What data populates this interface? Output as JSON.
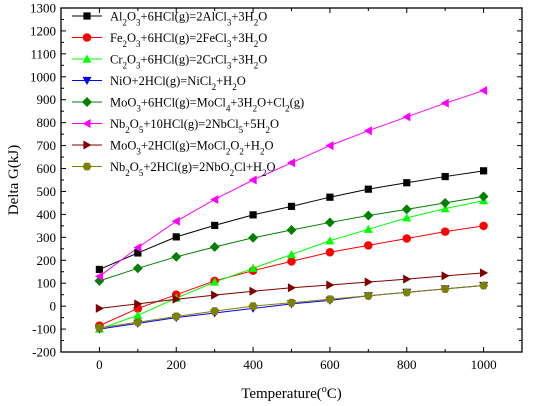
{
  "chart_data": {
    "type": "line",
    "title": "",
    "xlabel": "Temperature",
    "xlabel_sup": "o",
    "xlabel_unit": "C)",
    "xlabel_full": "Temperature(oC)",
    "ylabel": "Delta G(kJ)",
    "xlim": [
      -100,
      1100
    ],
    "ylim": [
      -200,
      1300
    ],
    "xticks": [
      0,
      200,
      400,
      600,
      800,
      1000
    ],
    "yticks": [
      -200,
      -100,
      0,
      100,
      200,
      300,
      400,
      500,
      600,
      700,
      800,
      900,
      1000,
      1100,
      1200,
      1300
    ],
    "grid": false,
    "legend_position": "top-left",
    "x": [
      0,
      100,
      200,
      300,
      400,
      500,
      600,
      700,
      800,
      900,
      1000
    ],
    "series": [
      {
        "name": "Al2O3+6HCl(g)=2AlCl3+3H2O",
        "label_parts": [
          [
            "Al",
            ""
          ],
          [
            "2",
            "sub"
          ],
          [
            "O",
            ""
          ],
          [
            "3",
            "sub"
          ],
          [
            "+6HCl(g)=2AlCl",
            ""
          ],
          [
            "3",
            "sub"
          ],
          [
            "+3H",
            ""
          ],
          [
            "2",
            "sub"
          ],
          [
            "O",
            ""
          ]
        ],
        "color": "#000000",
        "marker": "square",
        "values": [
          160,
          232,
          302,
          352,
          398,
          435,
          475,
          510,
          538,
          565,
          590
        ]
      },
      {
        "name": "Fe2O3+6HCl(g)=2FeCl3+3H2O",
        "label_parts": [
          [
            "Fe",
            ""
          ],
          [
            "2",
            "sub"
          ],
          [
            "O",
            ""
          ],
          [
            "3",
            "sub"
          ],
          [
            "+6HCl(g)=2FeCl",
            ""
          ],
          [
            "3",
            "sub"
          ],
          [
            "+3H",
            ""
          ],
          [
            "2",
            "sub"
          ],
          [
            "O",
            ""
          ]
        ],
        "color": "#ff0000",
        "marker": "circle",
        "values": [
          -85,
          -10,
          50,
          110,
          155,
          195,
          235,
          265,
          295,
          325,
          350
        ]
      },
      {
        "name": "Cr2O3+6HCl(g)=2CrCl3+3H2O",
        "label_parts": [
          [
            "Cr",
            ""
          ],
          [
            "2",
            "sub"
          ],
          [
            "O",
            ""
          ],
          [
            "3",
            "sub"
          ],
          [
            "+6HCl(g)=2CrCl",
            ""
          ],
          [
            "3",
            "sub"
          ],
          [
            "+3H",
            ""
          ],
          [
            "2",
            "sub"
          ],
          [
            "O",
            ""
          ]
        ],
        "color": "#00ff00",
        "marker": "triangle-up",
        "values": [
          -100,
          -40,
          35,
          105,
          165,
          225,
          285,
          335,
          385,
          425,
          460
        ]
      },
      {
        "name": "NiO+2HCl(g)=NiCl2+H2O",
        "label_parts": [
          [
            "NiO+2HCl(g)=NiCl",
            ""
          ],
          [
            "2",
            "sub"
          ],
          [
            "+H",
            ""
          ],
          [
            "2",
            "sub"
          ],
          [
            "O",
            ""
          ]
        ],
        "color": "#0000ff",
        "marker": "triangle-down",
        "values": [
          -100,
          -75,
          -50,
          -30,
          -10,
          10,
          25,
          45,
          60,
          75,
          90
        ]
      },
      {
        "name": "MoO3+6HCl(g)=MoCl4+3H2O+Cl2(g)",
        "label_parts": [
          [
            "MoO",
            ""
          ],
          [
            "3",
            "sub"
          ],
          [
            "+6HCl(g)=MoCl",
            ""
          ],
          [
            "4",
            "sub"
          ],
          [
            "+3H",
            ""
          ],
          [
            "2",
            "sub"
          ],
          [
            "O+Cl",
            ""
          ],
          [
            "2",
            "sub"
          ],
          [
            "(g)",
            ""
          ]
        ],
        "color": "#008000",
        "marker": "diamond",
        "values": [
          110,
          165,
          215,
          258,
          298,
          332,
          365,
          395,
          422,
          450,
          478
        ]
      },
      {
        "name": "Nb2O5+10HCl(g)=2NbCl5+5H2O",
        "label_parts": [
          [
            "Nb",
            ""
          ],
          [
            "2",
            "sub"
          ],
          [
            "O",
            ""
          ],
          [
            "5",
            "sub"
          ],
          [
            "+10HCl(g)=2NbCl",
            ""
          ],
          [
            "5",
            "sub"
          ],
          [
            "+5H",
            ""
          ],
          [
            "2",
            "sub"
          ],
          [
            "O",
            ""
          ]
        ],
        "color": "#ff00ff",
        "marker": "triangle-left",
        "values": [
          130,
          255,
          370,
          465,
          550,
          625,
          700,
          765,
          825,
          885,
          940
        ]
      },
      {
        "name": "MoO3+2HCl(g)=MoCl2O2+H2O",
        "label_parts": [
          [
            "MoO",
            ""
          ],
          [
            "3",
            "sub"
          ],
          [
            "+2HCl(g)=MoCl",
            ""
          ],
          [
            "2",
            "sub"
          ],
          [
            "O",
            ""
          ],
          [
            "2",
            "sub"
          ],
          [
            "+H",
            ""
          ],
          [
            "2",
            "sub"
          ],
          [
            "O",
            ""
          ]
        ],
        "color": "#800000",
        "marker": "triangle-right",
        "values": [
          -10,
          10,
          30,
          48,
          65,
          80,
          92,
          105,
          118,
          132,
          145
        ]
      },
      {
        "name": "Nb2O5+2HCl(g)=2NbO2Cl+H2O",
        "label_parts": [
          [
            "Nb",
            ""
          ],
          [
            "2",
            "sub"
          ],
          [
            "O",
            ""
          ],
          [
            "5",
            "sub"
          ],
          [
            "+2HCl(g)=2NbO",
            ""
          ],
          [
            "2",
            "sub"
          ],
          [
            "Cl+H",
            ""
          ],
          [
            "2",
            "sub"
          ],
          [
            "O",
            ""
          ]
        ],
        "color": "#808000",
        "marker": "hexagon",
        "values": [
          -95,
          -70,
          -45,
          -22,
          0,
          15,
          30,
          45,
          60,
          75,
          90
        ]
      }
    ]
  }
}
